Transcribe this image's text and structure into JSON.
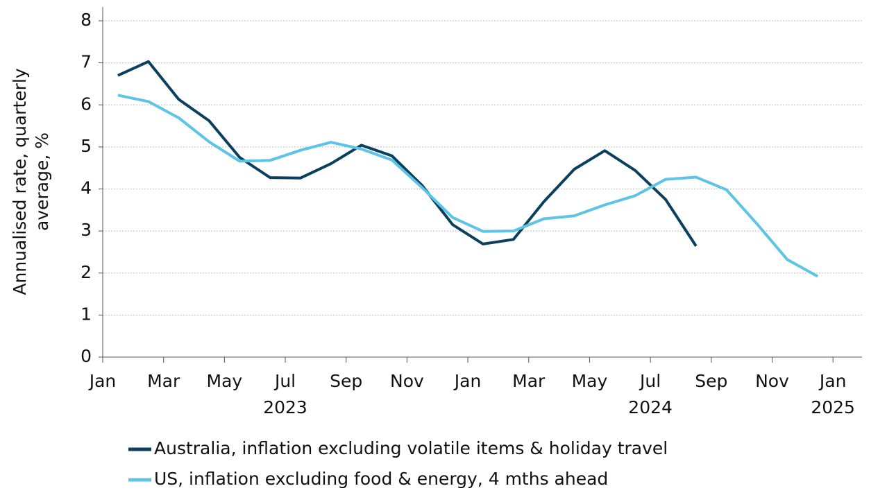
{
  "chart_data": {
    "type": "line",
    "y_label": [
      "Annualised rate, quarterly",
      "average, %"
    ],
    "x": [
      "2023-01",
      "2023-02",
      "2023-03",
      "2023-04",
      "2023-05",
      "2023-06",
      "2023-07",
      "2023-08",
      "2023-09",
      "2023-10",
      "2023-11",
      "2023-12",
      "2024-01",
      "2024-02",
      "2024-03",
      "2024-04",
      "2024-05",
      "2024-06",
      "2024-07",
      "2024-08",
      "2024-09",
      "2024-10",
      "2024-11",
      "2024-12"
    ],
    "series": [
      {
        "name": "Australia, inflation excluding volatile items & holiday travel",
        "color": "#0a3f5e",
        "values": [
          6.7,
          7.03,
          6.13,
          5.62,
          4.75,
          4.27,
          4.26,
          4.6,
          5.04,
          4.79,
          4.08,
          3.15,
          2.69,
          2.8,
          3.7,
          4.47,
          4.91,
          4.44,
          3.75,
          2.64,
          null,
          null,
          null,
          null
        ]
      },
      {
        "name": "US, inflation excluding food & energy, 4 mths ahead",
        "color": "#5ec4e6",
        "values": [
          6.23,
          6.08,
          5.69,
          5.12,
          4.66,
          4.68,
          4.92,
          5.11,
          4.95,
          4.69,
          4.03,
          3.32,
          2.99,
          3.0,
          3.29,
          3.36,
          3.62,
          3.84,
          4.23,
          4.28,
          3.98,
          3.17,
          2.32,
          1.92
        ]
      }
    ],
    "xlim": [
      "2023-01",
      "2025-02"
    ],
    "xticks": [
      {
        "value": "2023-01",
        "label": "Jan"
      },
      {
        "value": "2023-03",
        "label": "Mar"
      },
      {
        "value": "2023-05",
        "label": "May"
      },
      {
        "value": "2023-07",
        "label": "Jul"
      },
      {
        "value": "2023-09",
        "label": "Sep"
      },
      {
        "value": "2023-11",
        "label": "Nov"
      },
      {
        "value": "2024-01",
        "label": "Jan"
      },
      {
        "value": "2024-03",
        "label": "Mar"
      },
      {
        "value": "2024-05",
        "label": "May"
      },
      {
        "value": "2024-07",
        "label": "Jul"
      },
      {
        "value": "2024-09",
        "label": "Sep"
      },
      {
        "value": "2024-11",
        "label": "Nov"
      },
      {
        "value": "2025-01",
        "label": "Jan"
      }
    ],
    "year_labels": [
      {
        "value": "2023-07",
        "label": "2023"
      },
      {
        "value": "2024-07",
        "label": "2024"
      },
      {
        "value": "2025-01",
        "label": "2025"
      }
    ],
    "ylim": [
      0,
      8
    ],
    "yticks": [
      0,
      1,
      2,
      3,
      4,
      5,
      6,
      7,
      8
    ],
    "grid": true
  }
}
